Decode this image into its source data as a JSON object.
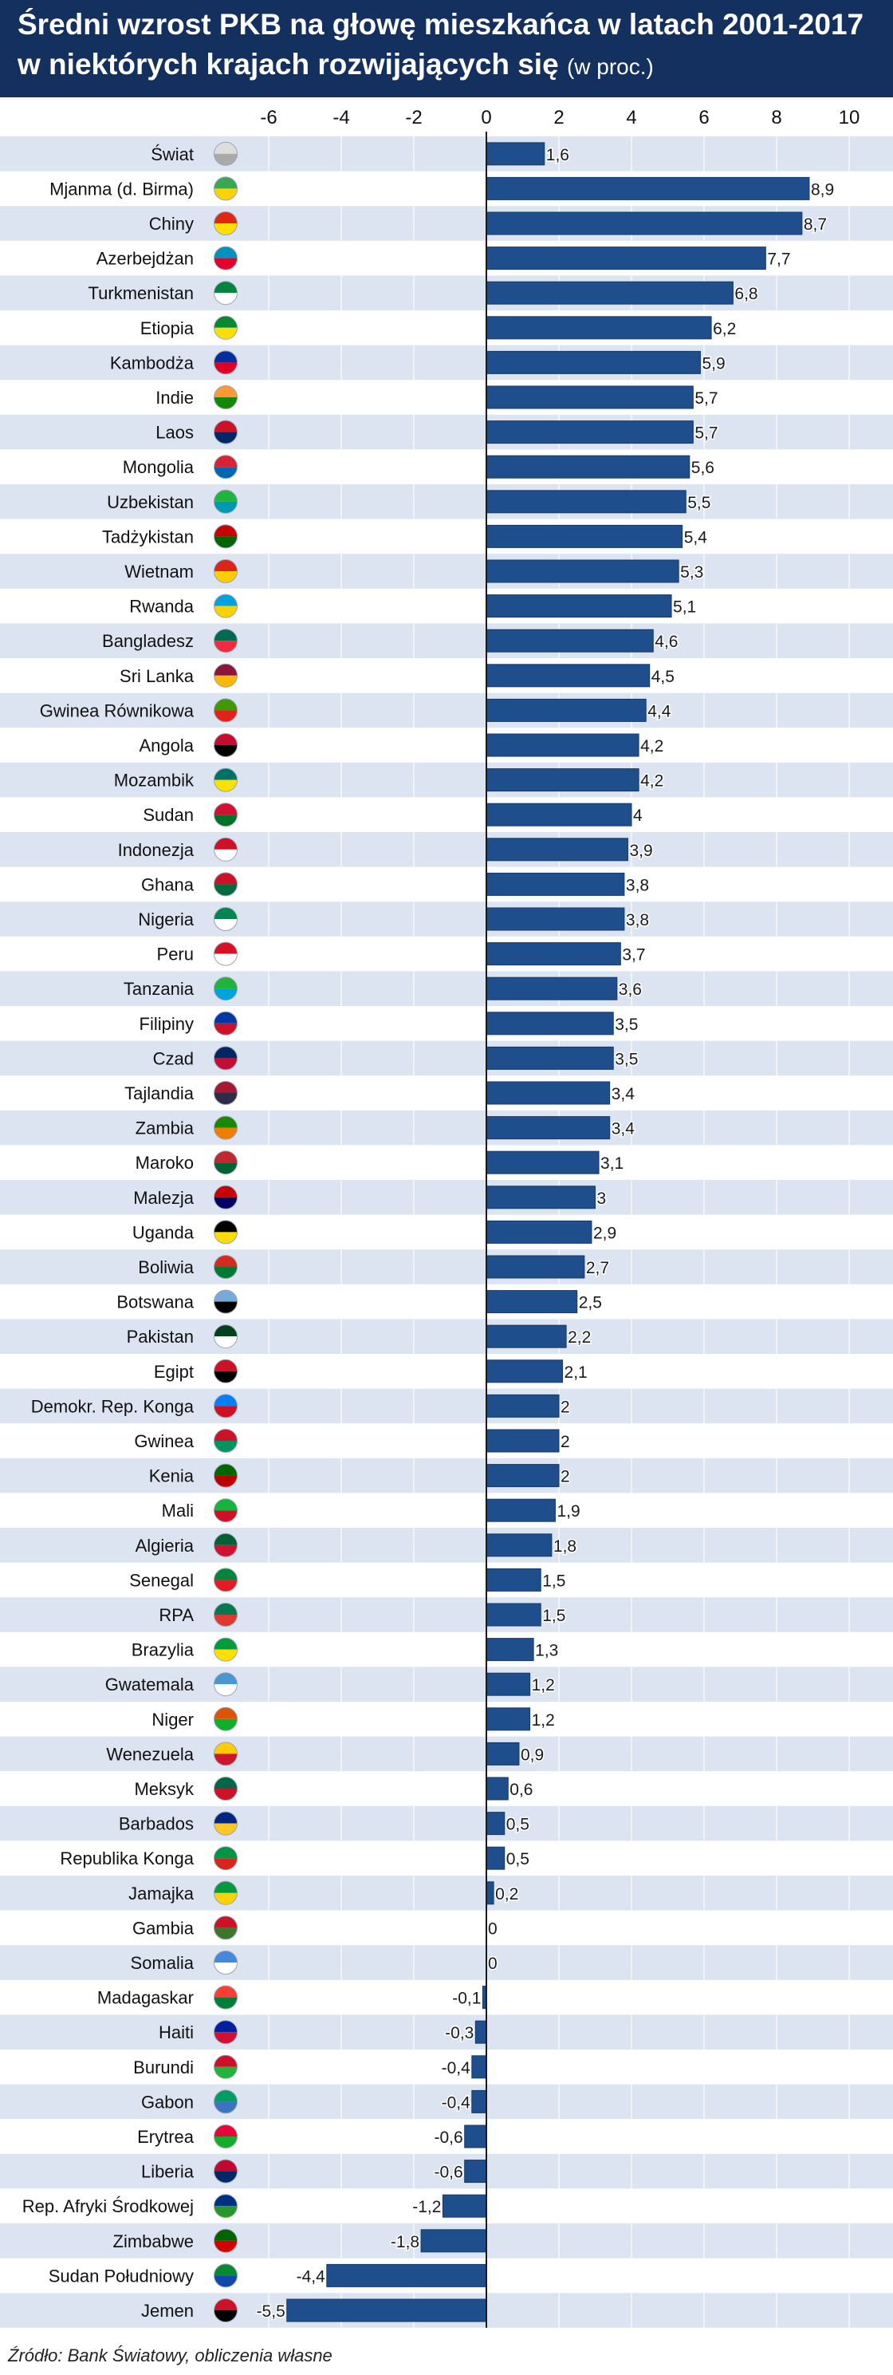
{
  "title_line1": "Średni wzrost PKB na głowę mieszkańca w latach 2001-2017",
  "title_line2": "w niektórych krajach rozwijających się",
  "title_units": "(w proc.)",
  "source": "Źródło: Bank Światowy, obliczenia własne",
  "colors": {
    "header": "#14305f",
    "bar": "#1f4e8c",
    "stripe": "#dde4f1",
    "zero_line": "#1a1a1a"
  },
  "chart_data": {
    "type": "bar",
    "orientation": "horizontal",
    "xlim": [
      -7,
      10.5
    ],
    "xticks": [
      -6,
      -4,
      -2,
      0,
      2,
      4,
      6,
      8,
      10
    ],
    "xtick_labels": [
      "-6",
      "-4",
      "-2",
      "0",
      "2",
      "4",
      "6",
      "8",
      "10"
    ],
    "grid": true,
    "categories": [
      "Świat",
      "Mjanma (d. Birma)",
      "Chiny",
      "Azerbejdżan",
      "Turkmenistan",
      "Etiopia",
      "Kambodża",
      "Indie",
      "Laos",
      "Mongolia",
      "Uzbekistan",
      "Tadżykistan",
      "Wietnam",
      "Rwanda",
      "Bangladesz",
      "Sri Lanka",
      "Gwinea Równikowa",
      "Angola",
      "Mozambik",
      "Sudan",
      "Indonezja",
      "Ghana",
      "Nigeria",
      "Peru",
      "Tanzania",
      "Filipiny",
      "Czad",
      "Tajlandia",
      "Zambia",
      "Maroko",
      "Malezja",
      "Uganda",
      "Boliwia",
      "Botswana",
      "Pakistan",
      "Egipt",
      "Demokr. Rep. Konga",
      "Gwinea",
      "Kenia",
      "Mali",
      "Algieria",
      "Senegal",
      "RPA",
      "Brazylia",
      "Gwatemala",
      "Niger",
      "Wenezuela",
      "Meksyk",
      "Barbados",
      "Republika Konga",
      "Jamajka",
      "Gambia",
      "Somalia",
      "Madagaskar",
      "Haiti",
      "Burundi",
      "Gabon",
      "Erytrea",
      "Liberia",
      "Rep. Afryki Środkowej",
      "Zimbabwe",
      "Sudan Południowy",
      "Jemen"
    ],
    "values": [
      1.6,
      8.9,
      8.7,
      7.7,
      6.8,
      6.2,
      5.9,
      5.7,
      5.7,
      5.6,
      5.5,
      5.4,
      5.3,
      5.1,
      4.6,
      4.5,
      4.4,
      4.2,
      4.2,
      4,
      3.9,
      3.8,
      3.8,
      3.7,
      3.6,
      3.5,
      3.5,
      3.4,
      3.4,
      3.1,
      3,
      2.9,
      2.7,
      2.5,
      2.2,
      2.1,
      2,
      2,
      2,
      1.9,
      1.8,
      1.5,
      1.5,
      1.3,
      1.2,
      1.2,
      0.9,
      0.6,
      0.5,
      0.5,
      0.2,
      0,
      0,
      -0.1,
      -0.3,
      -0.4,
      -0.4,
      -0.6,
      -0.6,
      -1.2,
      -1.8,
      -4.4,
      -5.5
    ],
    "value_labels": [
      "1,6",
      "8,9",
      "8,7",
      "7,7",
      "6,8",
      "6,2",
      "5,9",
      "5,7",
      "5,7",
      "5,6",
      "5,5",
      "5,4",
      "5,3",
      "5,1",
      "4,6",
      "4,5",
      "4,4",
      "4,2",
      "4,2",
      "4",
      "3,9",
      "3,8",
      "3,8",
      "3,7",
      "3,6",
      "3,5",
      "3,5",
      "3,4",
      "3,4",
      "3,1",
      "3",
      "2,9",
      "2,7",
      "2,5",
      "2,2",
      "2,1",
      "2",
      "2",
      "2",
      "1,9",
      "1,8",
      "1,5",
      "1,5",
      "1,3",
      "1,2",
      "1,2",
      "0,9",
      "0,6",
      "0,5",
      "0,5",
      "0,2",
      "0",
      "0",
      "-0,1",
      "-0,3",
      "-0,4",
      "-0,4",
      "-0,6",
      "-0,6",
      "-1,2",
      "-1,8",
      "-4,4",
      "-5,5"
    ],
    "flag_icons": [
      "globe-icon",
      "flag-myanmar-icon",
      "flag-china-icon",
      "flag-azerbaijan-icon",
      "flag-turkmenistan-icon",
      "flag-ethiopia-icon",
      "flag-cambodia-icon",
      "flag-india-icon",
      "flag-laos-icon",
      "flag-mongolia-icon",
      "flag-uzbekistan-icon",
      "flag-tajikistan-icon",
      "flag-vietnam-icon",
      "flag-rwanda-icon",
      "flag-bangladesh-icon",
      "flag-sri-lanka-icon",
      "flag-equatorial-guinea-icon",
      "flag-angola-icon",
      "flag-mozambique-icon",
      "flag-sudan-icon",
      "flag-indonesia-icon",
      "flag-ghana-icon",
      "flag-nigeria-icon",
      "flag-peru-icon",
      "flag-tanzania-icon",
      "flag-philippines-icon",
      "flag-chad-icon",
      "flag-thailand-icon",
      "flag-zambia-icon",
      "flag-morocco-icon",
      "flag-malaysia-icon",
      "flag-uganda-icon",
      "flag-bolivia-icon",
      "flag-botswana-icon",
      "flag-pakistan-icon",
      "flag-egypt-icon",
      "flag-dr-congo-icon",
      "flag-guinea-icon",
      "flag-kenya-icon",
      "flag-mali-icon",
      "flag-algeria-icon",
      "flag-senegal-icon",
      "flag-south-africa-icon",
      "flag-brazil-icon",
      "flag-guatemala-icon",
      "flag-niger-icon",
      "flag-venezuela-icon",
      "flag-mexico-icon",
      "flag-barbados-icon",
      "flag-republic-congo-icon",
      "flag-jamaica-icon",
      "flag-gambia-icon",
      "flag-somalia-icon",
      "flag-madagascar-icon",
      "flag-haiti-icon",
      "flag-burundi-icon",
      "flag-gabon-icon",
      "flag-eritrea-icon",
      "flag-liberia-icon",
      "flag-car-icon",
      "flag-zimbabwe-icon",
      "flag-south-sudan-icon",
      "flag-yemen-icon"
    ],
    "flag_colors": [
      [
        "#dddddd",
        "#aaaaaa"
      ],
      [
        "#34a853",
        "#fbd203"
      ],
      [
        "#de2910",
        "#ffde00"
      ],
      [
        "#0092bc",
        "#e4002b"
      ],
      [
        "#00843d",
        "#ffffff"
      ],
      [
        "#078930",
        "#fcdd09"
      ],
      [
        "#032ea1",
        "#e00025"
      ],
      [
        "#ff9933",
        "#138808"
      ],
      [
        "#ce1126",
        "#002868"
      ],
      [
        "#da2032",
        "#0066b3"
      ],
      [
        "#1eb53a",
        "#0099b5"
      ],
      [
        "#cc0000",
        "#006600"
      ],
      [
        "#da251d",
        "#ffcd00"
      ],
      [
        "#00a1de",
        "#fad201"
      ],
      [
        "#006a4e",
        "#f42a41"
      ],
      [
        "#8d153a",
        "#ffb700"
      ],
      [
        "#3e9a00",
        "#e32118"
      ],
      [
        "#cc092f",
        "#000000"
      ],
      [
        "#007168",
        "#fce100"
      ],
      [
        "#d21034",
        "#007229"
      ],
      [
        "#ce1126",
        "#ffffff"
      ],
      [
        "#ce1126",
        "#006b3f"
      ],
      [
        "#008751",
        "#ffffff"
      ],
      [
        "#d91023",
        "#ffffff"
      ],
      [
        "#1eb53a",
        "#00a3dd"
      ],
      [
        "#0038a8",
        "#ce1126"
      ],
      [
        "#002664",
        "#c60c30"
      ],
      [
        "#a51931",
        "#2d2a4a"
      ],
      [
        "#198a00",
        "#ef7d00"
      ],
      [
        "#c1272d",
        "#006233"
      ],
      [
        "#cc0001",
        "#010066"
      ],
      [
        "#000000",
        "#fcdc04"
      ],
      [
        "#d52b1e",
        "#007934"
      ],
      [
        "#75aadb",
        "#000000"
      ],
      [
        "#01411c",
        "#ffffff"
      ],
      [
        "#ce1126",
        "#000000"
      ],
      [
        "#007fff",
        "#ce1021"
      ],
      [
        "#ce1126",
        "#009460"
      ],
      [
        "#006600",
        "#bb0000"
      ],
      [
        "#14b53a",
        "#ce1126"
      ],
      [
        "#006233",
        "#d21034"
      ],
      [
        "#00853f",
        "#e31b23"
      ],
      [
        "#007a4d",
        "#de3831"
      ],
      [
        "#009c3b",
        "#ffdf00"
      ],
      [
        "#4997d0",
        "#ffffff"
      ],
      [
        "#e05206",
        "#0db02b"
      ],
      [
        "#ffcc00",
        "#cf142b"
      ],
      [
        "#006847",
        "#ce1126"
      ],
      [
        "#00267f",
        "#ffc726"
      ],
      [
        "#009543",
        "#dc241f"
      ],
      [
        "#009b3a",
        "#fed100"
      ],
      [
        "#ce1126",
        "#3a7728"
      ],
      [
        "#4189dd",
        "#ffffff"
      ],
      [
        "#fc3d32",
        "#007e3a"
      ],
      [
        "#00209f",
        "#d21034"
      ],
      [
        "#ce1126",
        "#1eb53a"
      ],
      [
        "#009e60",
        "#3a75c4"
      ],
      [
        "#ea0437",
        "#12ad2b"
      ],
      [
        "#bf0a30",
        "#002868"
      ],
      [
        "#003082",
        "#289728"
      ],
      [
        "#006400",
        "#d40000"
      ],
      [
        "#078930",
        "#0f47af"
      ],
      [
        "#ce1126",
        "#000000"
      ]
    ]
  }
}
